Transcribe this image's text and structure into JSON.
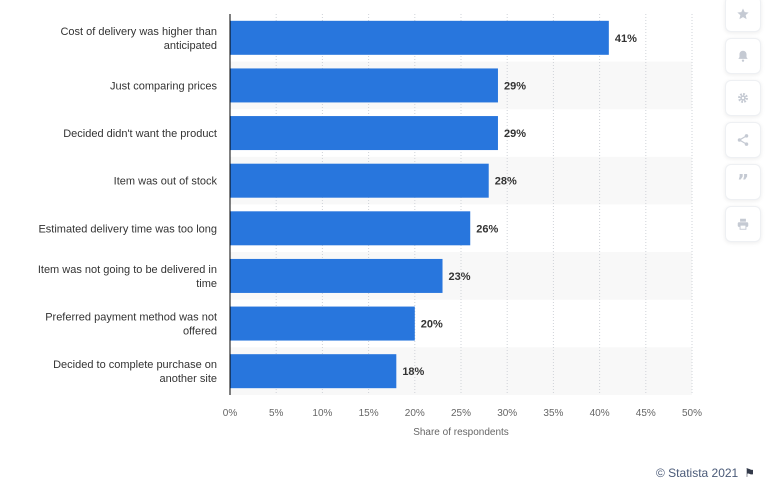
{
  "chart_data": {
    "type": "bar",
    "orientation": "horizontal",
    "categories": [
      [
        "Cost of delivery was higher than",
        "anticipated"
      ],
      [
        "Just comparing prices"
      ],
      [
        "Decided didn't want the product"
      ],
      [
        "Item was out of stock"
      ],
      [
        "Estimated delivery time was too long"
      ],
      [
        "Item was not going to be delivered in",
        "time"
      ],
      [
        "Preferred payment method was not",
        "offered"
      ],
      [
        "Decided to complete purchase on",
        "another site"
      ]
    ],
    "values": [
      41,
      29,
      29,
      28,
      26,
      23,
      20,
      18
    ],
    "data_labels": [
      "41%",
      "29%",
      "29%",
      "28%",
      "26%",
      "23%",
      "20%",
      "18%"
    ],
    "xlabel": "Share of respondents",
    "ylabel": "",
    "xlim": [
      0,
      50
    ],
    "xticks": [
      0,
      5,
      10,
      15,
      20,
      25,
      30,
      35,
      40,
      45,
      50
    ],
    "xtick_labels": [
      "0%",
      "5%",
      "10%",
      "15%",
      "20%",
      "25%",
      "30%",
      "35%",
      "40%",
      "45%",
      "50%"
    ],
    "grid": "vertical dotted",
    "alternating_row_bands": true,
    "bar_color": "#2876dd",
    "band_color": "#f8f8f8",
    "grid_color": "#cfd3d8",
    "axis_color": "#000000"
  },
  "toolbar": {
    "icons": [
      "star-icon",
      "bell-icon",
      "gear-icon",
      "share-icon",
      "quote-icon",
      "print-icon"
    ],
    "icon_color": "#c5cad3"
  },
  "credit": {
    "text": "© Statista 2021",
    "flag_icon": "flag-icon"
  }
}
